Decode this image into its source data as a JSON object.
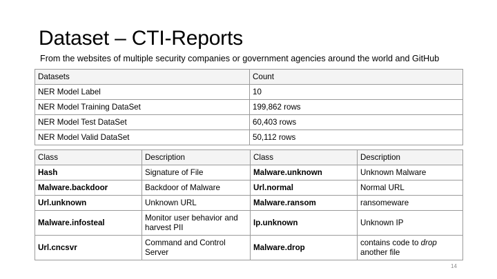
{
  "slide": {
    "title": "Dataset – CTI-Reports",
    "subtitle": "From the websites of multiple security companies or government agencies around the world and GitHub",
    "page_number": "14"
  },
  "dataset_table": {
    "headers": [
      "Datasets",
      "Count"
    ],
    "rows": [
      [
        "NER Model Label",
        "10"
      ],
      [
        "NER Model Training DataSet",
        "199,862 rows"
      ],
      [
        "NER Model Test DataSet",
        "60,403 rows"
      ],
      [
        "NER Model Valid DataSet",
        "50,112 rows"
      ]
    ]
  },
  "class_table": {
    "headers": [
      "Class",
      "Description",
      "Class",
      "Description"
    ],
    "rows": [
      [
        "Hash",
        "Signature of File",
        "Malware.unknown",
        "Unknown Malware"
      ],
      [
        "Malware.backdoor",
        "Backdoor of Malware",
        "Url.normal",
        "Normal URL"
      ],
      [
        "Url.unknown",
        "Unknown URL",
        "Malware.ransom",
        "ransomeware"
      ],
      [
        "Malware.infosteal",
        "Monitor user behavior and harvest PII",
        "Ip.unknown",
        "Unknown IP"
      ],
      [
        "Url.cncsvr",
        "Command and Control Server",
        "Malware.drop",
        "contains code to drop another file"
      ]
    ]
  }
}
